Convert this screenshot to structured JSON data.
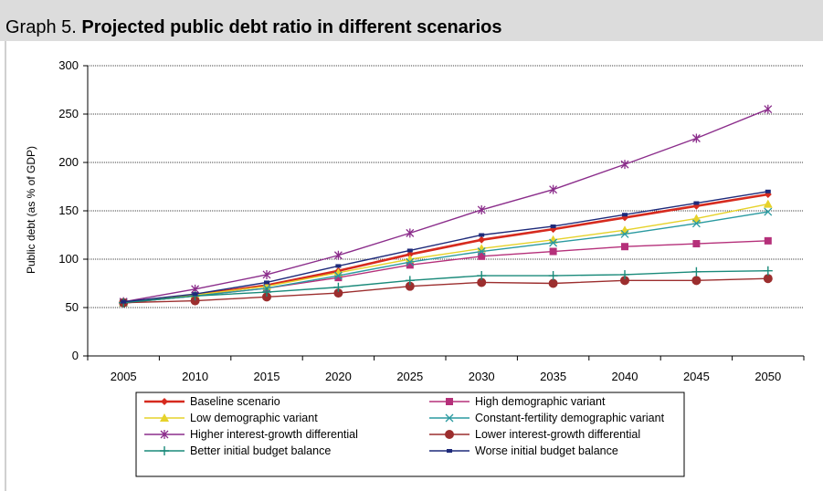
{
  "header": {
    "prefix": "Graph 5.",
    "title": "Projected public debt ratio in different scenarios"
  },
  "chart_data": {
    "type": "line",
    "ylabel": "Public debt (as % of GDP)",
    "xlabel": "",
    "ylim": [
      0,
      300
    ],
    "yticks": [
      0,
      50,
      100,
      150,
      200,
      250,
      300
    ],
    "grid": true,
    "legend_position": "bottom",
    "x": [
      "2005",
      "2010",
      "2015",
      "2020",
      "2025",
      "2030",
      "2035",
      "2040",
      "2045",
      "2050"
    ],
    "series": [
      {
        "name": "Baseline scenario",
        "color": "#d62a1e",
        "marker": "diamond",
        "values": [
          55,
          63,
          73,
          88,
          105,
          120,
          131,
          143,
          155,
          167
        ]
      },
      {
        "name": "High demographic variant",
        "color": "#b5307a",
        "marker": "square",
        "values": [
          55,
          62,
          70,
          81,
          94,
          103,
          108,
          113,
          116,
          119
        ]
      },
      {
        "name": "Low demographic variant",
        "color": "#e6d22a",
        "marker": "triangle",
        "values": [
          55,
          63,
          72,
          86,
          100,
          111,
          120,
          130,
          142,
          157
        ]
      },
      {
        "name": "Constant-fertility demographic variant",
        "color": "#2a9aa0",
        "marker": "x",
        "values": [
          55,
          62,
          70,
          83,
          97,
          108,
          117,
          126,
          137,
          149
        ]
      },
      {
        "name": "Higher interest-growth differential",
        "color": "#8b2d8b",
        "marker": "star",
        "values": [
          56,
          69,
          84,
          104,
          127,
          151,
          172,
          198,
          225,
          255
        ]
      },
      {
        "name": "Lower interest-growth differential",
        "color": "#9c2e2e",
        "marker": "circle",
        "values": [
          55,
          57,
          61,
          65,
          72,
          76,
          75,
          78,
          78,
          80
        ]
      },
      {
        "name": "Better initial budget balance",
        "color": "#1a8a7a",
        "marker": "plus",
        "values": [
          55,
          62,
          66,
          71,
          78,
          83,
          83,
          84,
          87,
          88
        ]
      },
      {
        "name": "Worse initial budget balance",
        "color": "#1e2a7a",
        "marker": "dash",
        "values": [
          56,
          64,
          76,
          93,
          109,
          125,
          134,
          146,
          158,
          170
        ]
      }
    ]
  }
}
